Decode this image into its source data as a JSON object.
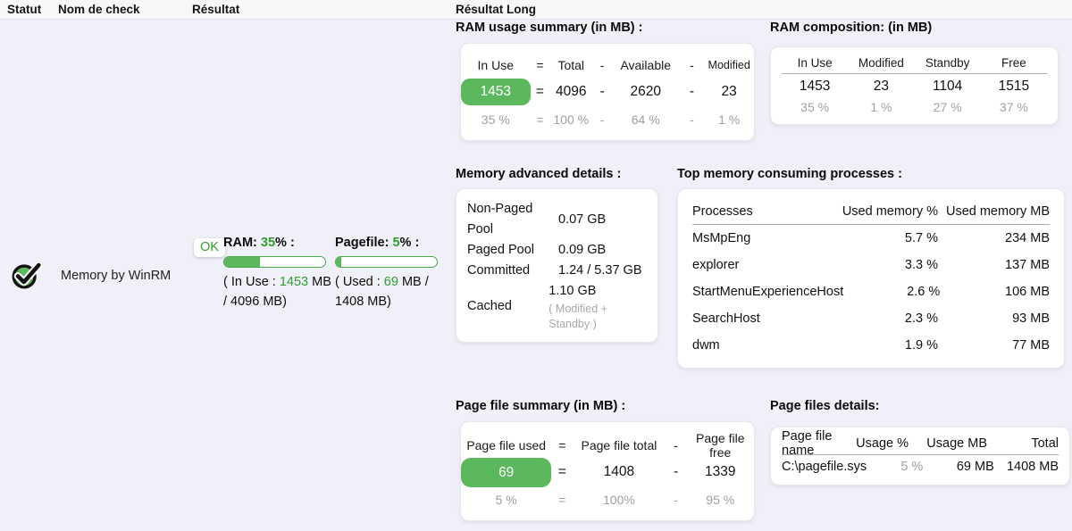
{
  "table_header": {
    "statut": "Statut",
    "nom": "Nom de check",
    "resultat": "Résultat",
    "resultat_long": "Résultat Long"
  },
  "check": {
    "name": "Memory by WinRM",
    "status": "OK",
    "status_icon": "check-circle",
    "ram_gauge": {
      "prefix": "RAM: ",
      "percent": "35",
      "suffix": "% :",
      "bar_percent": 35,
      "detail_prefix": "( In Use : ",
      "detail_value": "1453",
      "detail_suffix": " MB / 4096 MB)"
    },
    "pagefile_gauge": {
      "prefix": "Pagefile: ",
      "percent": "5",
      "suffix": "% :",
      "bar_percent": 5,
      "detail_prefix": "( Used : ",
      "detail_value": "69",
      "detail_suffix": " MB / 1408 MB)"
    }
  },
  "ram_summary": {
    "title": "RAM usage summary (in MB) :",
    "headers": [
      "In Use",
      "=",
      "Total",
      "-",
      "Available",
      "-",
      "Modified"
    ],
    "values": [
      "1453",
      "=",
      "4096",
      "-",
      "2620",
      "-",
      "23"
    ],
    "percents": [
      "35 %",
      "=",
      "100 %",
      "-",
      "64 %",
      "-",
      "1 %"
    ]
  },
  "ram_composition": {
    "title": "RAM composition: (in MB)",
    "headers": [
      "In Use",
      "Modified",
      "Standby",
      "Free"
    ],
    "values": [
      "1453",
      "23",
      "1104",
      "1515"
    ],
    "percents": [
      "35 %",
      "1 %",
      "27 %",
      "37 %"
    ]
  },
  "memory_advanced": {
    "title": "Memory advanced details :",
    "rows": [
      {
        "label": "Non-Paged Pool",
        "value": "0.07 GB"
      },
      {
        "label": "Paged Pool",
        "value": "0.09 GB"
      },
      {
        "label": "Committed",
        "value": "1.24 / 5.37 GB"
      },
      {
        "label": "Cached",
        "value": "1.10 GB",
        "note": "( Modified + Standby )"
      }
    ]
  },
  "top_processes": {
    "title": "Top memory consuming processes :",
    "headers": [
      "Processes",
      "Used memory %",
      "Used memory MB"
    ],
    "rows": [
      {
        "name": "MsMpEng",
        "pct": "5.7 %",
        "mb": "234 MB"
      },
      {
        "name": "explorer",
        "pct": "3.3 %",
        "mb": "137 MB"
      },
      {
        "name": "StartMenuExperienceHost",
        "pct": "2.6 %",
        "mb": "106 MB"
      },
      {
        "name": "SearchHost",
        "pct": "2.3 %",
        "mb": "93 MB"
      },
      {
        "name": "dwm",
        "pct": "1.9 %",
        "mb": "77 MB"
      }
    ]
  },
  "pagefile_summary": {
    "title": "Page file summary (in MB) :",
    "headers": [
      "Page file used",
      "=",
      "Page file total",
      "-",
      "Page file free"
    ],
    "values": [
      "69",
      "=",
      "1408",
      "-",
      "1339"
    ],
    "percents": [
      "5 %",
      "=",
      "100%",
      "-",
      "95 %"
    ]
  },
  "pagefile_details": {
    "title": "Page files details:",
    "headers": [
      "Page file name",
      "Usage %",
      "Usage MB",
      "Total"
    ],
    "rows": [
      {
        "name": "C:\\pagefile.sys",
        "usage_pct": "5 %",
        "usage_mb": "69 MB",
        "total": "1408 MB"
      }
    ]
  },
  "colors": {
    "green_fill": "#5cb85c",
    "green_text": "#2f9e2f",
    "muted_text": "#9e9ea6",
    "background": "#f0f0f8"
  }
}
